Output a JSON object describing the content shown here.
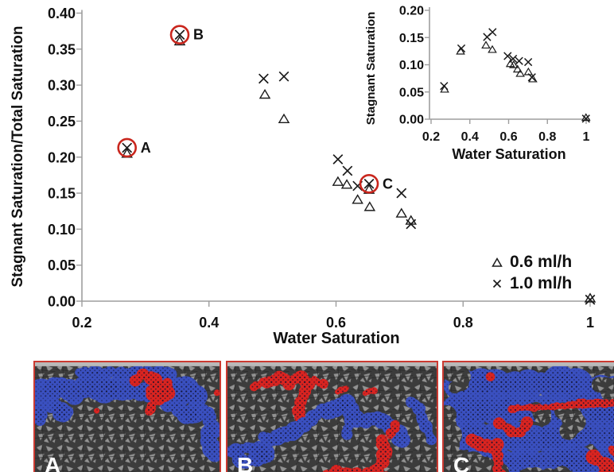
{
  "figure": {
    "main": {
      "y_title": "Stagnant Saturation/Total Saturation",
      "x_title": "Water Saturation"
    },
    "inset": {
      "y_title": "Stagnant Saturation",
      "x_title": "Water Saturation"
    },
    "legend": {
      "items": [
        {
          "marker": "triangle",
          "label": "0.6 ml/h"
        },
        {
          "marker": "cross",
          "label": "1.0 ml/h"
        }
      ]
    }
  },
  "chart_data": [
    {
      "id": "main",
      "type": "scatter",
      "title": "",
      "xlabel": "Water Saturation",
      "ylabel": "Stagnant Saturation/Total Saturation",
      "xlim": [
        0.2,
        1.0
      ],
      "ylim": [
        0.0,
        0.4
      ],
      "xticks": [
        0.2,
        0.4,
        0.6,
        0.8,
        1.0
      ],
      "xtick_labels": [
        "0.2",
        "0.4",
        "0.6",
        "0.8",
        "1"
      ],
      "yticks": [
        0.0,
        0.05,
        0.1,
        0.15,
        0.2,
        0.25,
        0.3,
        0.35,
        0.4
      ],
      "ytick_labels": [
        "0.00",
        "0.05",
        "0.10",
        "0.15",
        "0.20",
        "0.25",
        "0.30",
        "0.35",
        "0.40"
      ],
      "grid": false,
      "legend_position": "lower right",
      "series": [
        {
          "name": "0.6 ml/h",
          "marker": "triangle",
          "points": [
            [
              0.271,
              0.205
            ],
            [
              0.354,
              0.361
            ],
            [
              0.488,
              0.287
            ],
            [
              0.518,
              0.253
            ],
            [
              0.603,
              0.166
            ],
            [
              0.617,
              0.162
            ],
            [
              0.652,
              0.155
            ],
            [
              0.634,
              0.141
            ],
            [
              0.653,
              0.131
            ],
            [
              0.703,
              0.122
            ],
            [
              0.718,
              0.112
            ],
            [
              1.0,
              0.004
            ]
          ]
        },
        {
          "name": "1.0 ml/h",
          "marker": "cross",
          "points": [
            [
              0.271,
              0.213
            ],
            [
              0.354,
              0.37
            ],
            [
              0.486,
              0.309
            ],
            [
              0.518,
              0.312
            ],
            [
              0.603,
              0.197
            ],
            [
              0.618,
              0.181
            ],
            [
              0.634,
              0.16
            ],
            [
              0.652,
              0.163
            ],
            [
              0.703,
              0.15
            ],
            [
              0.718,
              0.107
            ],
            [
              1.0,
              0.002
            ]
          ]
        }
      ],
      "highlights": [
        {
          "x": 0.271,
          "y": 0.213,
          "label": "A"
        },
        {
          "x": 0.354,
          "y": 0.37,
          "label": "B"
        },
        {
          "x": 0.652,
          "y": 0.163,
          "label": "C"
        }
      ]
    },
    {
      "id": "inset",
      "type": "scatter",
      "title": "",
      "xlabel": "Water Saturation",
      "ylabel": "Stagnant Saturation",
      "xlim": [
        0.2,
        1.0
      ],
      "ylim": [
        0.0,
        0.2
      ],
      "xticks": [
        0.2,
        0.4,
        0.6,
        0.8,
        1.0
      ],
      "xtick_labels": [
        "0.2",
        "0.4",
        "0.6",
        "0.8",
        "1"
      ],
      "yticks": [
        0.0,
        0.05,
        0.1,
        0.15,
        0.2
      ],
      "ytick_labels": [
        "0.00",
        "0.05",
        "0.10",
        "0.15",
        "0.20"
      ],
      "grid": false,
      "legend_position": "none",
      "series": [
        {
          "name": "0.6 ml/h",
          "marker": "triangle",
          "points": [
            [
              0.27,
              0.055
            ],
            [
              0.352,
              0.125
            ],
            [
              0.483,
              0.136
            ],
            [
              0.516,
              0.128
            ],
            [
              0.609,
              0.102
            ],
            [
              0.626,
              0.1
            ],
            [
              0.646,
              0.092
            ],
            [
              0.66,
              0.084
            ],
            [
              0.702,
              0.087
            ],
            [
              0.725,
              0.074
            ],
            [
              0.999,
              0.003
            ]
          ]
        },
        {
          "name": "1.0 ml/h",
          "marker": "cross",
          "points": [
            [
              0.267,
              0.061
            ],
            [
              0.356,
              0.13
            ],
            [
              0.489,
              0.151
            ],
            [
              0.517,
              0.16
            ],
            [
              0.595,
              0.116
            ],
            [
              0.623,
              0.111
            ],
            [
              0.654,
              0.107
            ],
            [
              0.701,
              0.105
            ],
            [
              0.72,
              0.077
            ],
            [
              0.999,
              0.001
            ]
          ]
        }
      ],
      "highlights": []
    }
  ],
  "panels": [
    {
      "label": "A"
    },
    {
      "label": "B"
    },
    {
      "label": "C"
    }
  ],
  "colors": {
    "marker": "#1a1a1a",
    "axis": "#9e9e9e",
    "highlight_circle": "#c9261d",
    "panel_border": "#cb3a31",
    "cluster_blue": "#3a50c0",
    "cluster_red": "#da2420",
    "mesh_dark": "#3c3c3c",
    "mesh_light": "#9b9b9b",
    "wall_gray": "#b9b9b9"
  }
}
